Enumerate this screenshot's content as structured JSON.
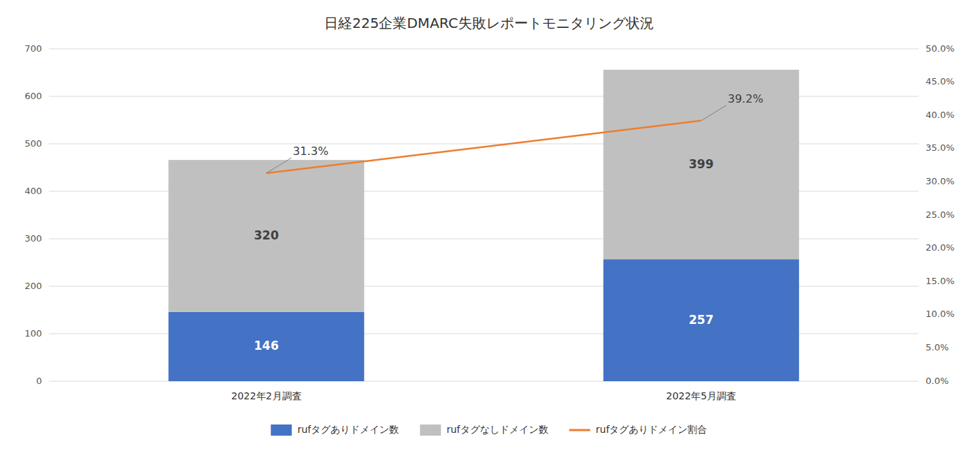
{
  "chart_data": {
    "type": "bar",
    "title": "日経225企業DMARC失敗レポートモニタリング状況",
    "categories": [
      "2022年2月調査",
      "2022年5月調査"
    ],
    "stacked": true,
    "data_labels": true,
    "grid": true,
    "legend": "bottom",
    "series": [
      {
        "name": "rufタグありドメイン数",
        "color": "#4472c4",
        "values": [
          146,
          257
        ]
      },
      {
        "name": "rufタグなしドメイン数",
        "color": "#c0c0c0",
        "values": [
          320,
          399
        ]
      },
      {
        "name": "rufタグありドメイン割合",
        "type": "line",
        "axis": "y2",
        "color": "#ed7d31",
        "values": [
          0.313,
          0.392
        ],
        "value_labels": [
          "31.3%",
          "39.2%"
        ]
      }
    ],
    "ylim": [
      0,
      700
    ],
    "yticks": [
      0,
      100,
      200,
      300,
      400,
      500,
      600,
      700
    ],
    "y2lim": [
      0,
      0.5
    ],
    "y2ticks": [
      {
        "value": 0.0,
        "label": "0.0%"
      },
      {
        "value": 0.05,
        "label": "5.0%"
      },
      {
        "value": 0.1,
        "label": "10.0%"
      },
      {
        "value": 0.15,
        "label": "15.0%"
      },
      {
        "value": 0.2,
        "label": "20.0%"
      },
      {
        "value": 0.25,
        "label": "25.0%"
      },
      {
        "value": 0.3,
        "label": "30.0%"
      },
      {
        "value": 0.35,
        "label": "35.0%"
      },
      {
        "value": 0.4,
        "label": "40.0%"
      },
      {
        "value": 0.45,
        "label": "45.0%"
      },
      {
        "value": 0.5,
        "label": "50.0%"
      }
    ]
  }
}
